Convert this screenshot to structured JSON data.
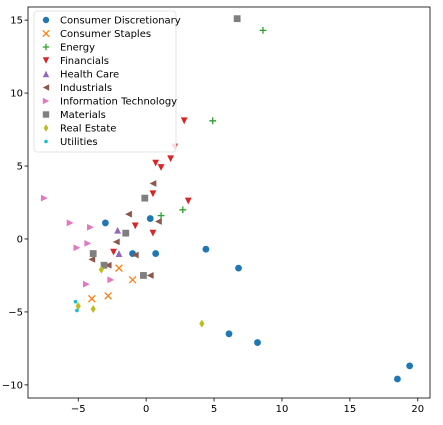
{
  "chart_data": {
    "type": "scatter",
    "xlim": [
      -8.7,
      20.9
    ],
    "ylim": [
      -10.9,
      15.9
    ],
    "x_ticks": [
      -5,
      0,
      5,
      10,
      15,
      20
    ],
    "y_ticks": [
      -10,
      -5,
      0,
      5,
      10,
      15
    ],
    "x_tick_labels": [
      "−5",
      "0",
      "5",
      "10",
      "15",
      "20"
    ],
    "y_tick_labels": [
      "−10",
      "−5",
      "0",
      "5",
      "10",
      "15"
    ],
    "grid": false,
    "legend_position": "top-left",
    "series": [
      {
        "name": "Consumer Discretionary",
        "marker": "circle",
        "color": "#1f77b4",
        "points": [
          [
            -3,
            1.1
          ],
          [
            0.3,
            1.4
          ],
          [
            0.7,
            -1
          ],
          [
            -1,
            -1
          ],
          [
            4.4,
            -0.7
          ],
          [
            6.8,
            -2
          ],
          [
            6.1,
            -6.5
          ],
          [
            8.2,
            -7.1
          ],
          [
            18.5,
            -9.6
          ],
          [
            19.4,
            -8.7
          ]
        ]
      },
      {
        "name": "Consumer Staples",
        "marker": "x",
        "color": "#ff7f0e",
        "points": [
          [
            -2,
            -2
          ],
          [
            -1,
            -2.8
          ],
          [
            -2.8,
            -3.9
          ],
          [
            -4,
            -4.1
          ]
        ]
      },
      {
        "name": "Energy",
        "marker": "plus",
        "color": "#2ca02c",
        "points": [
          [
            8.6,
            14.3
          ],
          [
            4.9,
            8.1
          ],
          [
            1.1,
            1.6
          ],
          [
            2.7,
            2
          ]
        ]
      },
      {
        "name": "Financials",
        "marker": "triangle-down",
        "color": "#d62728",
        "points": [
          [
            2.8,
            8.1
          ],
          [
            2.1,
            6.3
          ],
          [
            1.8,
            5.5
          ],
          [
            0.7,
            5.2
          ],
          [
            1.1,
            4.9
          ],
          [
            0.5,
            3.1
          ],
          [
            3.1,
            2.6
          ],
          [
            0.5,
            0.4
          ],
          [
            -0.8,
            0.9
          ],
          [
            -2.4,
            -0.9
          ]
        ]
      },
      {
        "name": "Health Care",
        "marker": "triangle-up",
        "color": "#9467bd",
        "points": [
          [
            -2.1,
            0.6
          ],
          [
            -2,
            -1
          ]
        ]
      },
      {
        "name": "Industrials",
        "marker": "triangle-left",
        "color": "#8c564b",
        "points": [
          [
            0.5,
            3.8
          ],
          [
            -1.3,
            1.7
          ],
          [
            0.9,
            1.2
          ],
          [
            -2.2,
            -0.2
          ],
          [
            -0.8,
            -1.1
          ],
          [
            -4,
            -1.4
          ],
          [
            -2.8,
            -1.8
          ],
          [
            0.3,
            -2.5
          ]
        ]
      },
      {
        "name": "Information Technology",
        "marker": "triangle-right",
        "color": "#e377c2",
        "points": [
          [
            -7.5,
            2.8
          ],
          [
            -5.6,
            1.1
          ],
          [
            -4.1,
            0.8
          ],
          [
            -4.3,
            -0.3
          ],
          [
            -5.1,
            -0.6
          ],
          [
            -2.6,
            -2.8
          ],
          [
            -4.4,
            -3.1
          ]
        ]
      },
      {
        "name": "Materials",
        "marker": "square",
        "color": "#7f7f7f",
        "points": [
          [
            6.7,
            15.1
          ],
          [
            -0.1,
            2.8
          ],
          [
            -1.5,
            0.4
          ],
          [
            -3.9,
            -1
          ],
          [
            -3.1,
            -1.8
          ],
          [
            -0.2,
            -2.5
          ]
        ]
      },
      {
        "name": "Real Estate",
        "marker": "diamond",
        "color": "#bcbd22",
        "points": [
          [
            4.1,
            -5.8
          ],
          [
            -3.3,
            -2.1
          ],
          [
            -5,
            -4.6
          ],
          [
            -3.9,
            -4.8
          ]
        ]
      },
      {
        "name": "Utilities",
        "marker": "point",
        "color": "#17becf",
        "points": [
          [
            -5.2,
            -4.3
          ],
          [
            -5.1,
            -4.9
          ]
        ]
      }
    ]
  }
}
